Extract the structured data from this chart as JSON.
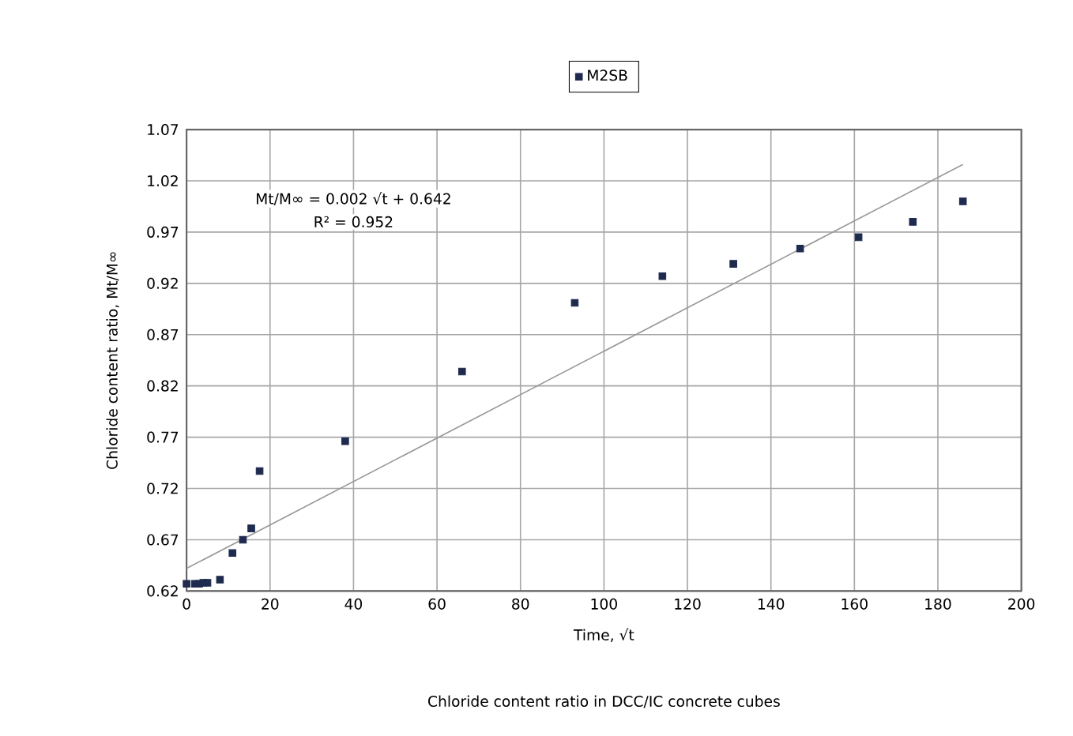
{
  "chart_data": {
    "type": "scatter",
    "xlabel": "Time, √t",
    "ylabel": "Chloride content ratio, Mt/M∞",
    "annotations": [
      "Mt/M∞ = 0.002 √t + 0.642",
      "R² = 0.952",
      "Chloride content ratio in DCC/IC concrete cubes"
    ],
    "series": [
      {
        "name": "M2SB",
        "marker": "square",
        "color": "#1f2a4f",
        "x": [
          0,
          2,
          3,
          4,
          5,
          8,
          11,
          13.5,
          15.5,
          17.5,
          38,
          66,
          93,
          114,
          131,
          147,
          161,
          174,
          186
        ],
        "values": [
          0.627,
          0.627,
          0.627,
          0.628,
          0.628,
          0.631,
          0.657,
          0.67,
          0.681,
          0.737,
          0.766,
          0.834,
          0.901,
          0.927,
          0.939,
          0.954,
          0.965,
          0.98,
          1.0
        ]
      },
      {
        "type": "line",
        "marker": "none",
        "color": "#999999",
        "x": [
          0,
          186
        ],
        "values": [
          0.642,
          1.036
        ]
      }
    ],
    "xlim": [
      0,
      200
    ],
    "ylim": [
      0.62,
      1.07
    ],
    "xticks": [
      0,
      20,
      40,
      60,
      80,
      100,
      120,
      140,
      160,
      180,
      200
    ],
    "yticks": [
      0.62,
      0.67,
      0.72,
      0.77,
      0.82,
      0.87,
      0.92,
      0.97,
      1.02,
      1.07
    ],
    "grid": true,
    "legend": "top"
  }
}
